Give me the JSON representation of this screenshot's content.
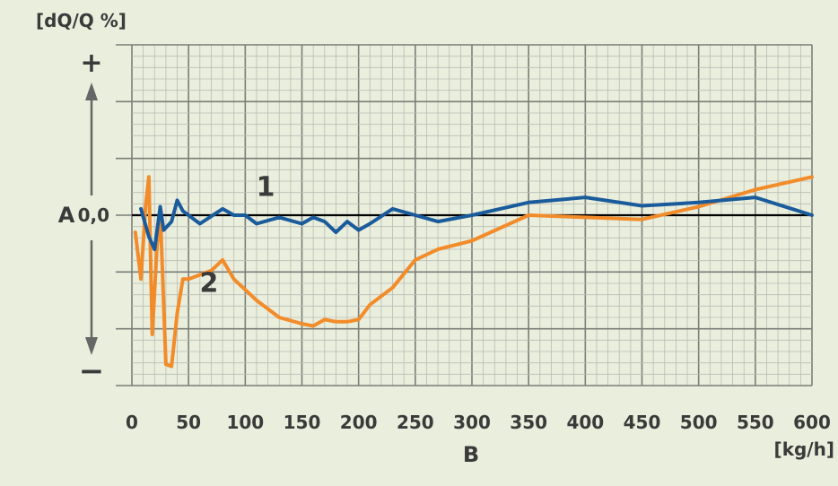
{
  "colors": {
    "background": "#eaeedd",
    "grid_minor": "#b9bdb3",
    "grid_major": "#7a7d78",
    "zero_line": "#000000",
    "text": "#3a3a3a",
    "series_1": "#1a5b9c",
    "series_2": "#f28c2a"
  },
  "chart_data": {
    "type": "line",
    "ylabel": "[dQ/Q %]",
    "xunit": "[kg/h]",
    "xaxis_name": "B",
    "yaxis_name": "A",
    "y_plus": "+",
    "y_minus": "−",
    "zero_label": "0,0",
    "xlim": [
      0,
      600
    ],
    "ylim": [
      -4,
      4
    ],
    "x_ticks": [
      0,
      50,
      100,
      150,
      200,
      250,
      300,
      350,
      400,
      450,
      500,
      550,
      600
    ],
    "x_tick_labels": [
      "0",
      "50",
      "100",
      "150",
      "200",
      "250",
      "300",
      "350",
      "400",
      "450",
      "500",
      "550",
      "600"
    ],
    "grid": true,
    "series": [
      {
        "name": "1",
        "color": "#1a5b9c",
        "x": [
          8,
          15,
          20,
          25,
          28,
          35,
          40,
          45,
          60,
          80,
          90,
          100,
          110,
          130,
          150,
          160,
          170,
          180,
          190,
          200,
          210,
          230,
          250,
          270,
          300,
          350,
          400,
          450,
          500,
          550,
          600
        ],
        "y": [
          0.15,
          -0.5,
          -0.8,
          0.2,
          -0.35,
          -0.15,
          0.35,
          0.1,
          -0.2,
          0.15,
          0.0,
          0.0,
          -0.2,
          -0.05,
          -0.2,
          -0.05,
          -0.15,
          -0.4,
          -0.15,
          -0.35,
          -0.2,
          0.15,
          0.0,
          -0.15,
          0.0,
          0.3,
          0.42,
          0.22,
          0.3,
          0.42,
          0.0
        ]
      },
      {
        "name": "2",
        "color": "#f28c2a",
        "x": [
          3,
          8,
          12,
          15,
          18,
          22,
          25,
          30,
          35,
          40,
          45,
          50,
          60,
          70,
          80,
          90,
          110,
          130,
          150,
          160,
          170,
          180,
          190,
          200,
          210,
          230,
          250,
          270,
          300,
          350,
          400,
          450,
          500,
          550,
          600
        ],
        "y": [
          -0.4,
          -1.5,
          0.2,
          0.9,
          -2.8,
          -0.8,
          0.1,
          -3.5,
          -3.55,
          -2.3,
          -1.5,
          -1.5,
          -1.4,
          -1.3,
          -1.05,
          -1.5,
          -2.0,
          -2.4,
          -2.55,
          -2.6,
          -2.45,
          -2.5,
          -2.5,
          -2.45,
          -2.1,
          -1.7,
          -1.05,
          -0.8,
          -0.6,
          0.0,
          -0.05,
          -0.1,
          0.2,
          0.6,
          0.9
        ]
      }
    ]
  }
}
